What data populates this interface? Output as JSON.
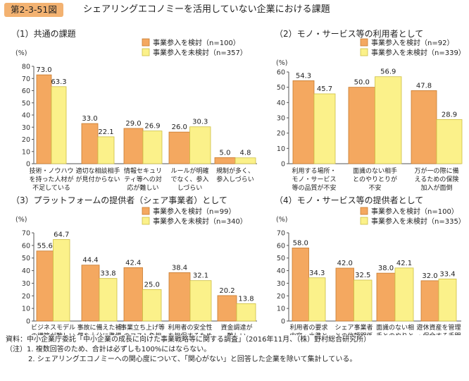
{
  "header": {
    "figure_label": "第2-3-51図",
    "title": "シェアリングエコノミーを活用していない企業における課題"
  },
  "chart_data": [
    {
      "type": "bar",
      "title": "（1）共通の課題",
      "ylabel": "(%)",
      "ylim": [
        0,
        80
      ],
      "yticks": [
        "0",
        "10",
        "20",
        "30",
        "40",
        "50",
        "60",
        "70",
        "80"
      ],
      "categories": [
        [
          "技術・ノウハウ",
          "を持った人材が",
          "不足している"
        ],
        [
          "適切な相談相手",
          "が見付からない"
        ],
        [
          "情報セキュリ",
          "ティ等への対",
          "応が難しい"
        ],
        [
          "ルールが明確",
          "でなく、参入",
          "しづらい"
        ],
        [
          "規制が多く、",
          "参入しづらい"
        ]
      ],
      "series": [
        {
          "name": "事業参入を検討（n=100）",
          "values": [
            73.0,
            33.0,
            29.0,
            26.0,
            5.0
          ],
          "labels": [
            "73.0",
            "33.0",
            "29.0",
            "26.0",
            "5.0"
          ]
        },
        {
          "name": "事業参入を未検討（n=357）",
          "values": [
            63.3,
            22.1,
            26.9,
            30.3,
            4.8
          ],
          "labels": [
            "63.3",
            "22.1",
            "26.9",
            "30.3",
            "4.8"
          ]
        }
      ]
    },
    {
      "type": "bar",
      "title": "（2）モノ・サービス等の利用者として",
      "ylabel": "(%)",
      "ylim": [
        0,
        60
      ],
      "yticks": [
        "0",
        "10",
        "20",
        "30",
        "40",
        "50",
        "60"
      ],
      "categories": [
        [
          "利用する場所・",
          "モノ・サービス",
          "等の品質が不安"
        ],
        [
          "面識のない相手",
          "とのやりとりが",
          "不安"
        ],
        [
          "万が一の際に備",
          "えるための保険",
          "加入が面倒"
        ]
      ],
      "series": [
        {
          "name": "事業参入を検討（n=92）",
          "values": [
            54.3,
            50.0,
            47.8
          ],
          "labels": [
            "54.3",
            "50.0",
            "47.8"
          ]
        },
        {
          "name": "事業参入を未検討（n=339）",
          "values": [
            45.7,
            56.9,
            28.9
          ],
          "labels": [
            "45.7",
            "56.9",
            "28.9"
          ]
        }
      ]
    },
    {
      "type": "bar",
      "title": "（3）プラットフォームの提供者（シェア事業者）として",
      "ylabel": "(%)",
      "ylim": [
        0,
        70
      ],
      "yticks": [
        "0",
        "10",
        "20",
        "30",
        "40",
        "50",
        "60",
        "70"
      ],
      "categories": [
        [
          "ビジネスモデル",
          "の構築が難しい"
        ],
        [
          "事故に備えた補",
          "償を十分に準備",
          "する必要がある"
        ],
        [
          "事業立ち上げ等",
          "のコスト負担"
        ],
        [
          "利用者の安全性",
          "を担保するため",
          "の配慮や取組み"
        ],
        [
          "資金調達が",
          "難しい"
        ]
      ],
      "series": [
        {
          "name": "事業参入を検討（n=99）",
          "values": [
            55.6,
            44.4,
            42.4,
            38.4,
            20.2
          ],
          "labels": [
            "55.6",
            "44.4",
            "42.4",
            "38.4",
            "20.2"
          ]
        },
        {
          "name": "事業参入を未検討（n=340）",
          "values": [
            64.7,
            33.8,
            25.0,
            32.1,
            13.8
          ],
          "labels": [
            "64.7",
            "33.8",
            "25.0",
            "32.1",
            "13.8"
          ]
        }
      ]
    },
    {
      "type": "bar",
      "title": "（4）モノ・サービス等の提供者として",
      "ylabel": "(%)",
      "ylim": [
        0,
        70
      ],
      "yticks": [
        "0",
        "10",
        "20",
        "30",
        "40",
        "50",
        "60",
        "70"
      ],
      "categories": [
        [
          "利用者の要求",
          "内容・水準と",
          "のミスマッチ"
        ],
        [
          "シェア事業者",
          "との信頼関係",
          "構築"
        ],
        [
          "面識のない相",
          "手とのやりと",
          "りが不安"
        ],
        [
          "遊休資産を管理",
          "・保全する手間",
          "やコスト負担"
        ]
      ],
      "series": [
        {
          "name": "事業参入を検討（n=100）",
          "values": [
            58.0,
            42.0,
            38.0,
            32.0
          ],
          "labels": [
            "58.0",
            "42.0",
            "38.0",
            "32.0"
          ]
        },
        {
          "name": "事業参入を未検討（n=335）",
          "values": [
            34.3,
            32.5,
            42.1,
            33.4
          ],
          "labels": [
            "34.3",
            "32.5",
            "42.1",
            "33.4"
          ]
        }
      ]
    }
  ],
  "colors": {
    "series1": "#f4a860",
    "series1_stroke": "#c77a2e",
    "series2": "#fbf18a",
    "series2_stroke": "#cdbf43",
    "axis": "#555555",
    "label_bg": "#f3b271"
  },
  "footer": {
    "source": "資料：中小企業庁委託「中小企業の成長に向けた事業戦略等に関する調査」（2016年11月、（株）野村総合研究所）",
    "note1": "（注）1. 複数回答のため、合計は必ずしも100%にはならない。",
    "note2": "2. シェアリングエコノミーへの関心度について、「関心がない」と回答した企業を除いて集計している。"
  }
}
